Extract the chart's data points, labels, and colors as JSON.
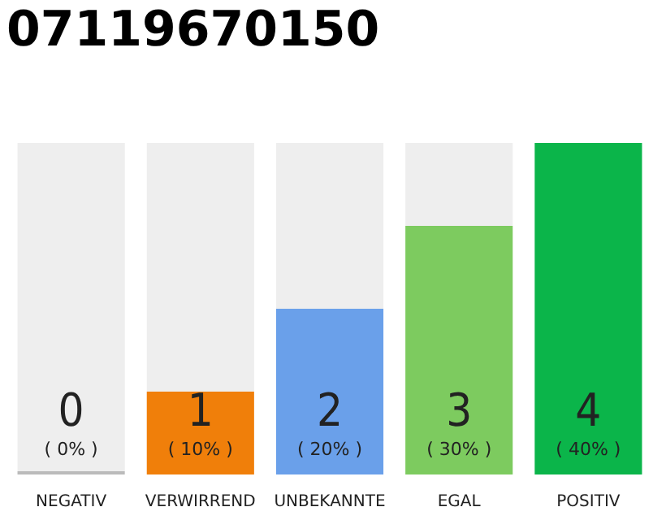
{
  "chart_data": {
    "type": "bar",
    "title": "07119670150",
    "categories": [
      "NEGATIV",
      "VERWIRREND",
      "UNBEKANNTE",
      "EGAL",
      "POSITIV"
    ],
    "stacked": true,
    "ylim": [
      0,
      4
    ],
    "tick_labels": "x",
    "series": [
      {
        "colors": [
          "#bbbbbb",
          "#f07f0a",
          "#6aa0ea",
          "#7dcb5f",
          "#0bb54a"
        ],
        "values": [
          0,
          1,
          2,
          3,
          4
        ],
        "value_labels": [
          "0\n( 0% )",
          "1\n( 10% )",
          "2\n( 20% )",
          "3\n( 30% )",
          "4\n( 40% )"
        ]
      },
      {
        "color": "#eeeeee",
        "values": [
          4,
          3,
          2,
          1,
          0
        ]
      }
    ]
  }
}
